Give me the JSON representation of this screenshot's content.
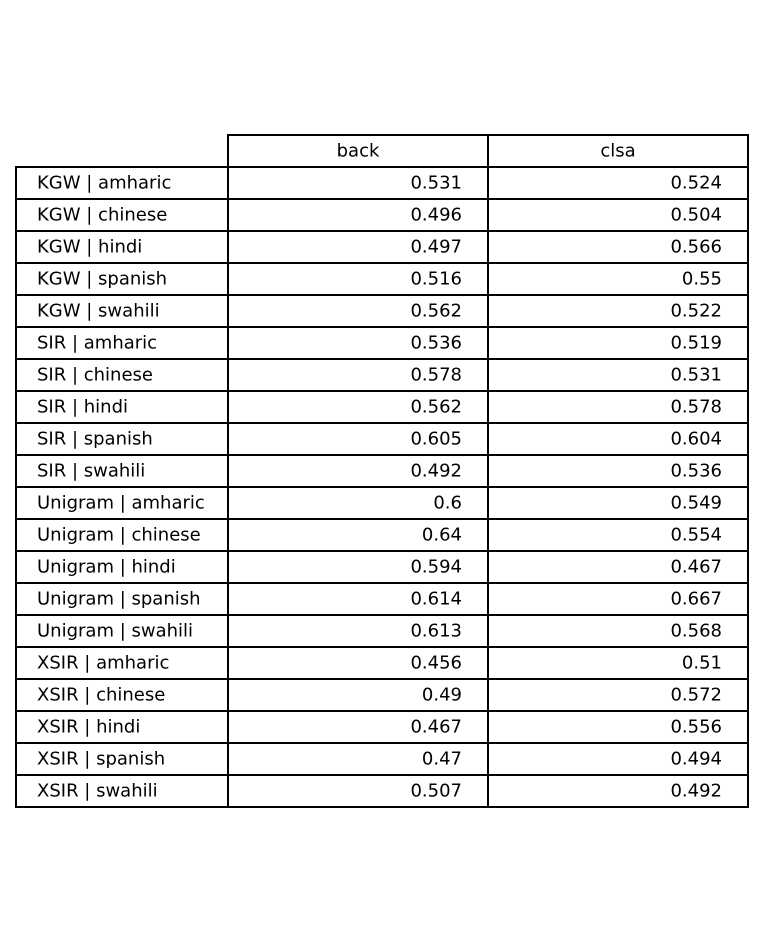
{
  "chart_data": {
    "type": "table",
    "columns": [
      "back",
      "clsa"
    ],
    "rows": [
      {
        "label": "KGW | amharic",
        "values": [
          "0.531",
          "0.524"
        ]
      },
      {
        "label": "KGW | chinese",
        "values": [
          "0.496",
          "0.504"
        ]
      },
      {
        "label": "KGW | hindi",
        "values": [
          "0.497",
          "0.566"
        ]
      },
      {
        "label": "KGW | spanish",
        "values": [
          "0.516",
          "0.55"
        ]
      },
      {
        "label": "KGW | swahili",
        "values": [
          "0.562",
          "0.522"
        ]
      },
      {
        "label": "SIR | amharic",
        "values": [
          "0.536",
          "0.519"
        ]
      },
      {
        "label": "SIR | chinese",
        "values": [
          "0.578",
          "0.531"
        ]
      },
      {
        "label": "SIR | hindi",
        "values": [
          "0.562",
          "0.578"
        ]
      },
      {
        "label": "SIR | spanish",
        "values": [
          "0.605",
          "0.604"
        ]
      },
      {
        "label": "SIR | swahili",
        "values": [
          "0.492",
          "0.536"
        ]
      },
      {
        "label": "Unigram | amharic",
        "values": [
          "0.6",
          "0.549"
        ]
      },
      {
        "label": "Unigram | chinese",
        "values": [
          "0.64",
          "0.554"
        ]
      },
      {
        "label": "Unigram | hindi",
        "values": [
          "0.594",
          "0.467"
        ]
      },
      {
        "label": "Unigram | spanish",
        "values": [
          "0.614",
          "0.667"
        ]
      },
      {
        "label": "Unigram | swahili",
        "values": [
          "0.613",
          "0.568"
        ]
      },
      {
        "label": "XSIR | amharic",
        "values": [
          "0.456",
          "0.51"
        ]
      },
      {
        "label": "XSIR | chinese",
        "values": [
          "0.49",
          "0.572"
        ]
      },
      {
        "label": "XSIR | hindi",
        "values": [
          "0.467",
          "0.556"
        ]
      },
      {
        "label": "XSIR | spanish",
        "values": [
          "0.47",
          "0.494"
        ]
      },
      {
        "label": "XSIR | swahili",
        "values": [
          "0.507",
          "0.492"
        ]
      }
    ]
  },
  "colors": {
    "border": "#000000",
    "background": "#ffffff",
    "text": "#000000"
  }
}
